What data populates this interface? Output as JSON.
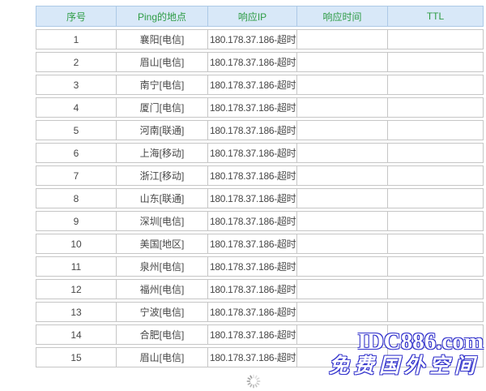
{
  "table": {
    "headers": [
      "序号",
      "Ping的地点",
      "响应IP",
      "响应时间",
      "TTL"
    ],
    "rows": [
      {
        "no": "1",
        "location": "襄阳[电信]",
        "ip": "180.178.37.186-超时",
        "time": "",
        "ttl": ""
      },
      {
        "no": "2",
        "location": "眉山[电信]",
        "ip": "180.178.37.186-超时",
        "time": "",
        "ttl": ""
      },
      {
        "no": "3",
        "location": "南宁[电信]",
        "ip": "180.178.37.186-超时",
        "time": "",
        "ttl": ""
      },
      {
        "no": "4",
        "location": "厦门[电信]",
        "ip": "180.178.37.186-超时",
        "time": "",
        "ttl": ""
      },
      {
        "no": "5",
        "location": "河南[联通]",
        "ip": "180.178.37.186-超时",
        "time": "",
        "ttl": ""
      },
      {
        "no": "6",
        "location": "上海[移动]",
        "ip": "180.178.37.186-超时",
        "time": "",
        "ttl": ""
      },
      {
        "no": "7",
        "location": "浙江[移动]",
        "ip": "180.178.37.186-超时",
        "time": "",
        "ttl": ""
      },
      {
        "no": "8",
        "location": "山东[联通]",
        "ip": "180.178.37.186-超时",
        "time": "",
        "ttl": ""
      },
      {
        "no": "9",
        "location": "深圳[电信]",
        "ip": "180.178.37.186-超时",
        "time": "",
        "ttl": ""
      },
      {
        "no": "10",
        "location": "美国[地区]",
        "ip": "180.178.37.186-超时",
        "time": "",
        "ttl": ""
      },
      {
        "no": "11",
        "location": "泉州[电信]",
        "ip": "180.178.37.186-超时",
        "time": "",
        "ttl": ""
      },
      {
        "no": "12",
        "location": "福州[电信]",
        "ip": "180.178.37.186-超时",
        "time": "",
        "ttl": ""
      },
      {
        "no": "13",
        "location": "宁波[电信]",
        "ip": "180.178.37.186-超时",
        "time": "",
        "ttl": ""
      },
      {
        "no": "14",
        "location": "合肥[电信]",
        "ip": "180.178.37.186-超时",
        "time": "",
        "ttl": ""
      },
      {
        "no": "15",
        "location": "眉山[电信]",
        "ip": "180.178.37.186-超时",
        "time": "",
        "ttl": ""
      }
    ]
  },
  "watermark": {
    "line1": "IDC886.com",
    "line2": "免费国外空间",
    "color": "#3333cc"
  },
  "status": {
    "loading_icon": "spinner-icon"
  },
  "colors": {
    "header_bg": "#d8e8f8",
    "header_text": "#2e9c45",
    "header_border": "#adc9e6",
    "row_border": "#c6c6c6",
    "cell_text": "#474747"
  }
}
